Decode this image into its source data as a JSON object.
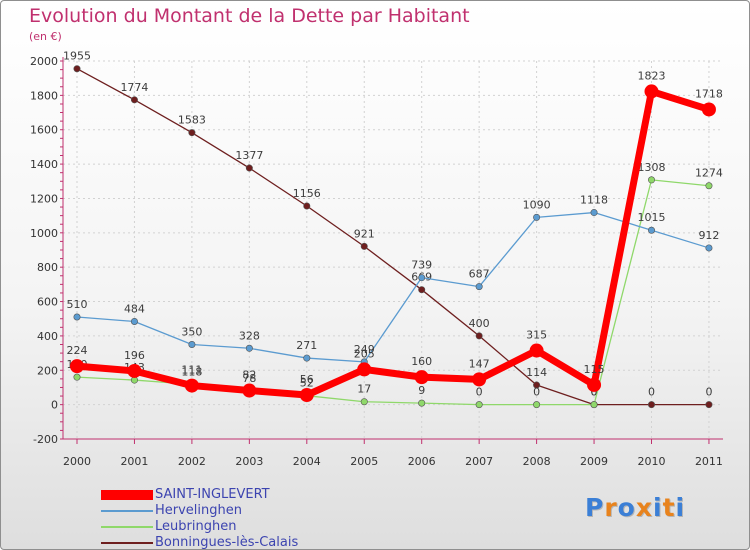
{
  "chart_data": {
    "type": "line",
    "title": "Evolution du Montant de la Dette par Habitant",
    "subtitle": "(en €)",
    "categories": [
      "2000",
      "2001",
      "2002",
      "2003",
      "2004",
      "2005",
      "2006",
      "2007",
      "2008",
      "2009",
      "2010",
      "2011"
    ],
    "ylim": [
      -200,
      2000
    ],
    "yticks": [
      -200,
      0,
      200,
      400,
      600,
      800,
      1000,
      1200,
      1400,
      1600,
      1800,
      2000
    ],
    "grid": true,
    "legend_position": "bottom-left",
    "series": [
      {
        "name": "Bonningues-lès-Calais",
        "color": "#6e1f1f",
        "values": [
          1955,
          1774,
          1583,
          1377,
          1156,
          921,
          669,
          400,
          114,
          0,
          0,
          0
        ],
        "labels": [
          "1955",
          "1774",
          "1583",
          "1377",
          "1156",
          "921",
          "669",
          "400",
          "114",
          "0",
          "0",
          "0"
        ]
      },
      {
        "name": "Leubringhen",
        "color": "#8fd86a",
        "values": [
          160,
          143,
          118,
          78,
          52,
          17,
          9,
          0,
          0,
          0,
          1308,
          1274
        ],
        "labels": [
          "160",
          "143",
          "118",
          "78",
          "52",
          "17",
          "9",
          "0",
          "0",
          "0",
          "1308",
          "1274"
        ]
      },
      {
        "name": "Hervelinghen",
        "color": "#5b9bd0",
        "values": [
          510,
          484,
          350,
          328,
          271,
          249,
          739,
          687,
          1090,
          1118,
          1015,
          912
        ],
        "labels": [
          "510",
          "484",
          "350",
          "328",
          "271",
          "249",
          "739",
          "687",
          "1090",
          "1118",
          "1015",
          "912"
        ]
      },
      {
        "name": "SAINT-INGLEVERT",
        "color": "#ff0000",
        "values": [
          224,
          196,
          111,
          82,
          56,
          205,
          160,
          147,
          315,
          115,
          1823,
          1718
        ],
        "labels": [
          "224",
          "196",
          "111",
          "82",
          "56",
          "205",
          "160",
          "147",
          "315",
          "115",
          "1823",
          "1718"
        ]
      }
    ]
  },
  "legend": [
    {
      "name": "SAINT-INGLEVERT",
      "color": "#ff0000"
    },
    {
      "name": "Hervelinghen",
      "color": "#5b9bd0"
    },
    {
      "name": "Leubringhen",
      "color": "#8fd86a"
    },
    {
      "name": "Bonningues-lès-Calais",
      "color": "#6e1f1f"
    }
  ],
  "logo": {
    "text": "Proxiti",
    "letter_colors": [
      "#3b7fd6",
      "#e8831d",
      "#3b7fd6",
      "#e8831d",
      "#3b7fd6",
      "#e8831d",
      "#3b7fd6"
    ]
  }
}
